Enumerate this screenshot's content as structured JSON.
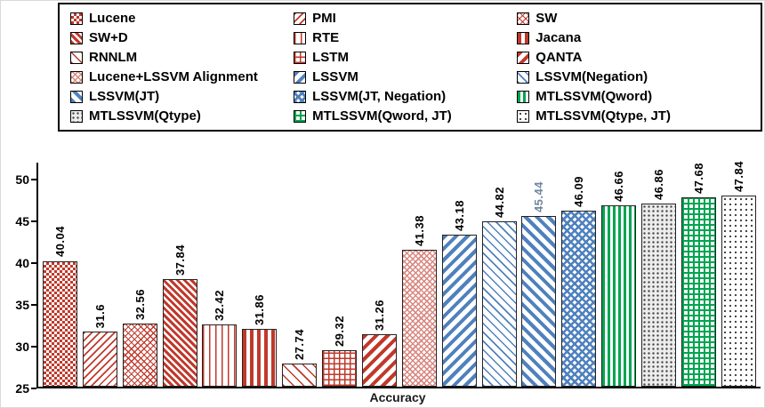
{
  "chart_data": {
    "type": "bar",
    "title": "",
    "xlabel": "Accuracy",
    "ylabel": "",
    "ylim": [
      25,
      52
    ],
    "yticks": [
      25,
      30,
      35,
      40,
      45,
      50
    ],
    "legend_position": "top",
    "grid": false,
    "colors": {
      "red": "#c0392b",
      "blue": "#4f81bd",
      "green": "#00a550",
      "gray": "#ececec",
      "highlight_label": "#6e87a0"
    },
    "series": [
      {
        "label": "Lucene",
        "value": 40.04,
        "display": "40.04",
        "pattern": "red-checker",
        "label_color": "#000000"
      },
      {
        "label": "PMI",
        "value": 31.6,
        "display": "31.6",
        "pattern": "red-diag-thin",
        "label_color": "#000000"
      },
      {
        "label": "SW",
        "value": 32.56,
        "display": "32.56",
        "pattern": "red-crosshatch",
        "label_color": "#000000"
      },
      {
        "label": "SW+D",
        "value": 37.84,
        "display": "37.84",
        "pattern": "red-diag-dense",
        "label_color": "#000000"
      },
      {
        "label": "RTE",
        "value": 32.42,
        "display": "32.42",
        "pattern": "red-vstripe-thin",
        "label_color": "#000000"
      },
      {
        "label": "Jacana",
        "value": 31.86,
        "display": "31.86",
        "pattern": "red-vstripe-thick",
        "label_color": "#000000"
      },
      {
        "label": "RNNLM",
        "value": 27.74,
        "display": "27.74",
        "pattern": "red-diag-light",
        "label_color": "#000000"
      },
      {
        "label": "LSTM",
        "value": 29.32,
        "display": "29.32",
        "pattern": "red-grid",
        "label_color": "#000000"
      },
      {
        "label": "QANTA",
        "value": 31.26,
        "display": "31.26",
        "pattern": "red-diag-thick",
        "label_color": "#000000"
      },
      {
        "label": "Lucene+LSSVM Alignment",
        "value": 41.38,
        "display": "41.38",
        "pattern": "pink-crosshatch",
        "label_color": "#000000"
      },
      {
        "label": "LSSVM",
        "value": 43.18,
        "display": "43.18",
        "pattern": "blue-diag-thick",
        "label_color": "#000000"
      },
      {
        "label": "LSSVM(Negation)",
        "value": 44.82,
        "display": "44.82",
        "pattern": "blue-diag-thin",
        "label_color": "#000000"
      },
      {
        "label": "LSSVM(JT)",
        "value": 45.44,
        "display": "45.44",
        "pattern": "blue-diag",
        "label_color": "#6e87a0"
      },
      {
        "label": "LSSVM(JT, Negation)",
        "value": 46.09,
        "display": "46.09",
        "pattern": "blue-weave",
        "label_color": "#000000"
      },
      {
        "label": "MTLSSVM(Qword)",
        "value": 46.66,
        "display": "46.66",
        "pattern": "green-vstripe",
        "label_color": "#000000"
      },
      {
        "label": "MTLSSVM(Qtype)",
        "value": 46.86,
        "display": "46.86",
        "pattern": "gray-dots",
        "label_color": "#000000"
      },
      {
        "label": "MTLSSVM(Qword, JT)",
        "value": 47.68,
        "display": "47.68",
        "pattern": "green-grid",
        "label_color": "#000000"
      },
      {
        "label": "MTLSSVM(Qtype, JT)",
        "value": 47.84,
        "display": "47.84",
        "pattern": "white-dots",
        "label_color": "#000000"
      }
    ]
  }
}
